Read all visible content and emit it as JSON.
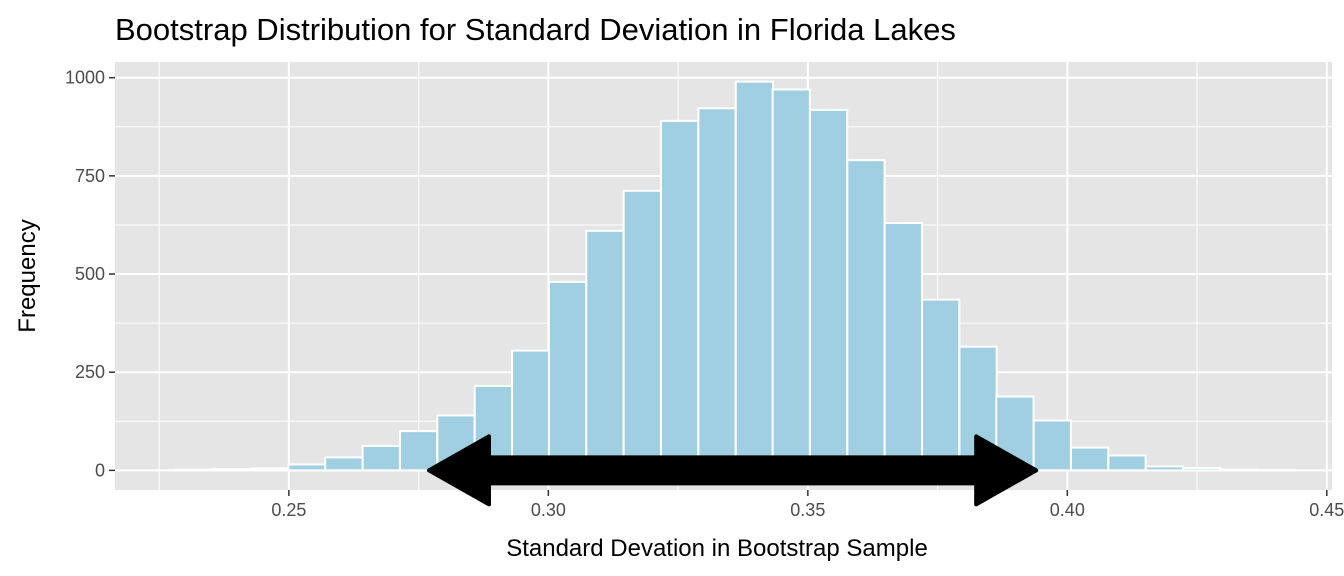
{
  "chart_data": {
    "type": "bar",
    "title": "Bootstrap Distribution for Standard Deviation in Florida Lakes",
    "xlabel": "Standard Devation in Bootstrap Sample",
    "ylabel": "Frequency",
    "xlim": [
      0.2165,
      0.451
    ],
    "ylim": [
      -50,
      1040
    ],
    "x_ticks": [
      0.25,
      0.3,
      0.35,
      0.4,
      0.45
    ],
    "x_tick_labels": [
      "0.25",
      "0.30",
      "0.35",
      "0.40",
      "0.45"
    ],
    "y_ticks": [
      0,
      250,
      500,
      750,
      1000
    ],
    "y_tick_labels": [
      "0",
      "250",
      "500",
      "750",
      "1000"
    ],
    "grid": true,
    "bin_width": 0.00718,
    "bin_centers": [
      0.2319,
      0.2391,
      0.2463,
      0.2535,
      0.2606,
      0.2678,
      0.275,
      0.2822,
      0.2894,
      0.2966,
      0.3037,
      0.3109,
      0.3181,
      0.3253,
      0.3325,
      0.3397,
      0.3468,
      0.354,
      0.3612,
      0.3684,
      0.3756,
      0.3828,
      0.3899,
      0.3971,
      0.4043,
      0.4115,
      0.4187,
      0.4259,
      0.433,
      0.4402
    ],
    "values": [
      2,
      3,
      5,
      15,
      33,
      62,
      100,
      140,
      215,
      305,
      480,
      610,
      712,
      890,
      922,
      990,
      970,
      918,
      790,
      630,
      435,
      315,
      188,
      127,
      58,
      38,
      10,
      6,
      2,
      1
    ],
    "annotation": {
      "type": "double-arrow",
      "x_start": 0.277,
      "x_end": 0.394,
      "y": 0
    },
    "colors": {
      "bar_fill": "#a0cfe1",
      "bar_outline": "#ffffff",
      "panel": "#e5e5e5",
      "arrow": "#000000"
    }
  }
}
